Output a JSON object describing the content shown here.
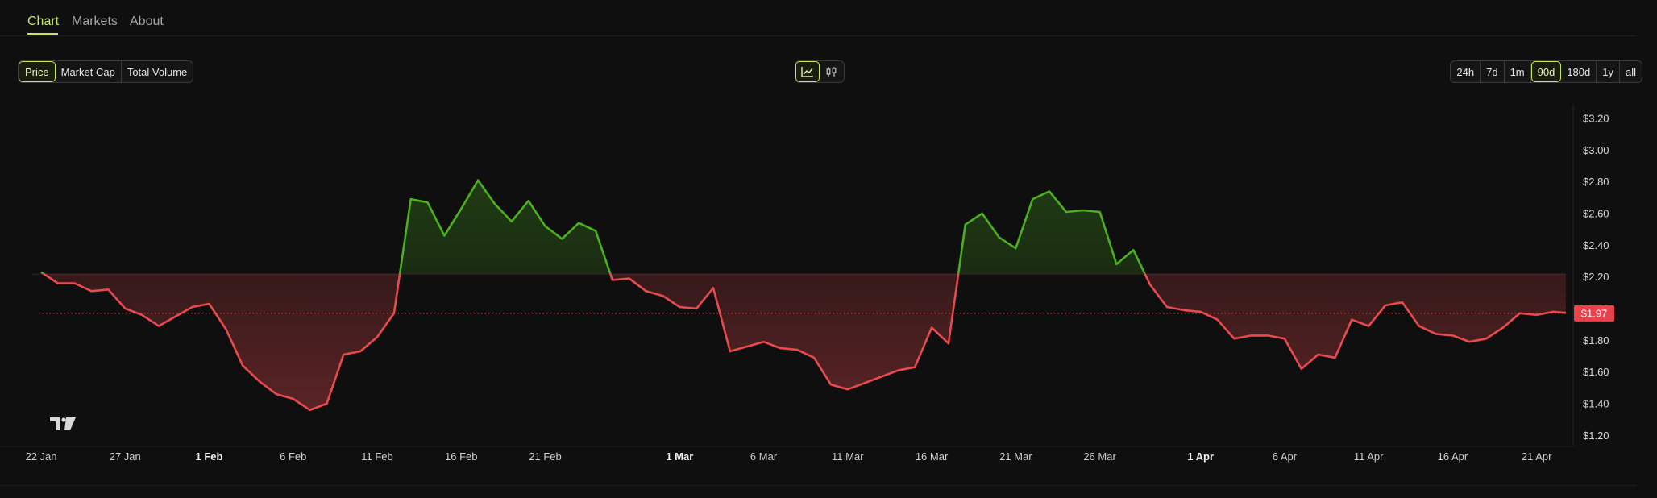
{
  "tabs": [
    {
      "label": "Chart",
      "active": true
    },
    {
      "label": "Markets",
      "active": false
    },
    {
      "label": "About",
      "active": false
    }
  ],
  "metric_toggle": [
    {
      "label": "Price",
      "active": true
    },
    {
      "label": "Market Cap",
      "active": false
    },
    {
      "label": "Total Volume",
      "active": false
    }
  ],
  "chart_style": [
    {
      "icon": "line-chart-icon",
      "active": true
    },
    {
      "icon": "candlestick-icon",
      "active": false
    }
  ],
  "ranges": [
    {
      "label": "24h",
      "active": false
    },
    {
      "label": "7d",
      "active": false
    },
    {
      "label": "1m",
      "active": false
    },
    {
      "label": "90d",
      "active": true
    },
    {
      "label": "180d",
      "active": false
    },
    {
      "label": "1y",
      "active": false
    },
    {
      "label": "all",
      "active": false
    }
  ],
  "colors": {
    "accent": "#c3e85c",
    "up": "#4caf20",
    "down": "#e84a4f",
    "background": "#0f0f0f",
    "price_tag": "#e8434a"
  },
  "watermark": "TV",
  "chart_data": {
    "type": "area",
    "title": "",
    "baseline": 2.22,
    "last_price": 1.97,
    "last_price_label": "$1.97",
    "ylim": [
      1.12,
      3.22
    ],
    "ytick_values": [
      1.2,
      1.4,
      1.6,
      1.8,
      2.0,
      2.2,
      2.4,
      2.6,
      2.8,
      3.0,
      3.2
    ],
    "ytick_labels": [
      "$1.20",
      "$1.40",
      "$1.60",
      "$1.80",
      "$2.00",
      "$2.20",
      "$2.40",
      "$2.60",
      "$2.80",
      "$3.00",
      "$3.20"
    ],
    "x_labels": [
      {
        "day": 0,
        "label": "22 Jan",
        "bold": false
      },
      {
        "day": 5,
        "label": "27 Jan",
        "bold": false
      },
      {
        "day": 10,
        "label": "1 Feb",
        "bold": true
      },
      {
        "day": 15,
        "label": "6 Feb",
        "bold": false
      },
      {
        "day": 20,
        "label": "11 Feb",
        "bold": false
      },
      {
        "day": 25,
        "label": "16 Feb",
        "bold": false
      },
      {
        "day": 30,
        "label": "21 Feb",
        "bold": false
      },
      {
        "day": 38,
        "label": "1 Mar",
        "bold": true
      },
      {
        "day": 43,
        "label": "6 Mar",
        "bold": false
      },
      {
        "day": 48,
        "label": "11 Mar",
        "bold": false
      },
      {
        "day": 53,
        "label": "16 Mar",
        "bold": false
      },
      {
        "day": 58,
        "label": "21 Mar",
        "bold": false
      },
      {
        "day": 63,
        "label": "26 Mar",
        "bold": false
      },
      {
        "day": 69,
        "label": "1 Apr",
        "bold": true
      },
      {
        "day": 74,
        "label": "6 Apr",
        "bold": false
      },
      {
        "day": 79,
        "label": "11 Apr",
        "bold": false
      },
      {
        "day": 84,
        "label": "16 Apr",
        "bold": false
      },
      {
        "day": 89,
        "label": "21 Apr",
        "bold": false
      }
    ],
    "series": [
      {
        "values": [
          2.23,
          2.16,
          2.16,
          2.11,
          2.12,
          2.0,
          1.96,
          1.89,
          1.95,
          2.01,
          2.03,
          1.87,
          1.64,
          1.54,
          1.46,
          1.43,
          1.36,
          1.4,
          1.71,
          1.73,
          1.82,
          1.97,
          2.69,
          2.67,
          2.46,
          2.63,
          2.81,
          2.66,
          2.55,
          2.68,
          2.52,
          2.44,
          2.54,
          2.49,
          2.18,
          2.19,
          2.11,
          2.08,
          2.01,
          2.0,
          2.13,
          1.73,
          1.76,
          1.79,
          1.75,
          1.74,
          1.69,
          1.52,
          1.49,
          1.53,
          1.57,
          1.61,
          1.63,
          1.88,
          1.78,
          2.53,
          2.6,
          2.45,
          2.38,
          2.69,
          2.74,
          2.61,
          2.62,
          2.61,
          2.28,
          2.37,
          2.15,
          2.01,
          1.99,
          1.98,
          1.93,
          1.81,
          1.83,
          1.83,
          1.81,
          1.62,
          1.71,
          1.69,
          1.93,
          1.89,
          2.02,
          2.04,
          1.89,
          1.84,
          1.83,
          1.79,
          1.81,
          1.88,
          1.97,
          1.96,
          1.98,
          1.97
        ]
      }
    ]
  }
}
